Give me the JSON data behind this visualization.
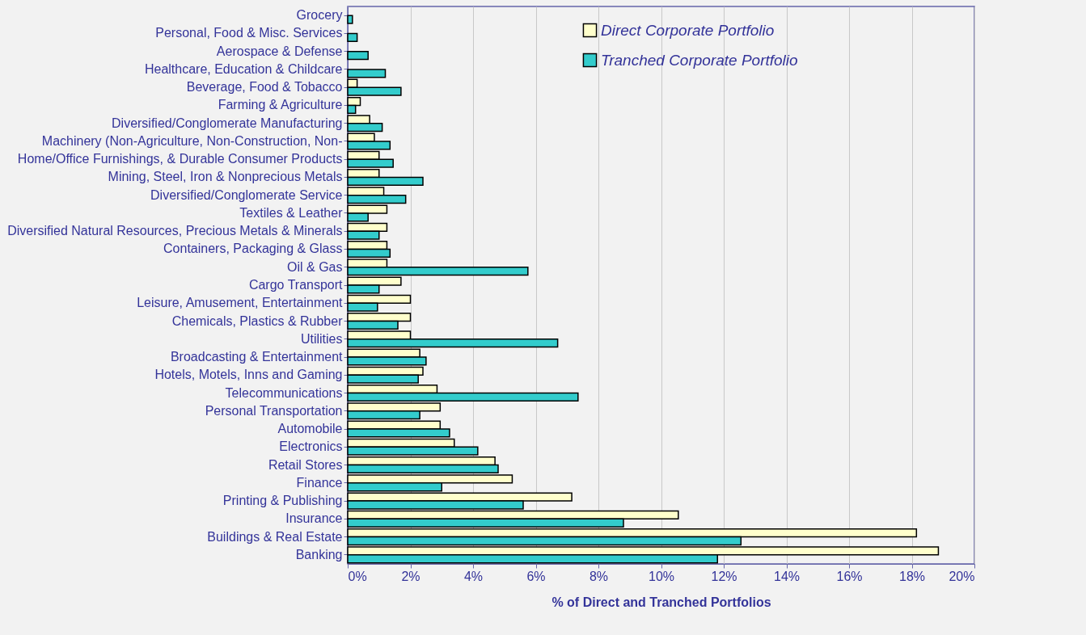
{
  "chart_data": {
    "type": "bar",
    "orientation": "horizontal",
    "xlabel": "% of Direct and Tranched Portfolios",
    "categories": [
      "Grocery",
      "Personal, Food & Misc. Services",
      "Aerospace & Defense",
      "Healthcare, Education & Childcare",
      "Beverage, Food & Tobacco",
      "Farming & Agriculture",
      "Diversified/Conglomerate Manufacturing",
      "Machinery (Non-Agriculture, Non-Construction, Non-",
      "Home/Office Furnishings, & Durable Consumer Products",
      "Mining, Steel, Iron & Nonprecious Metals",
      "Diversified/Conglomerate Service",
      "Textiles & Leather",
      "Diversified Natural Resources, Precious Metals & Minerals",
      "Containers, Packaging & Glass",
      "Oil & Gas",
      "Cargo Transport",
      "Leisure, Amusement, Entertainment",
      "Chemicals, Plastics & Rubber",
      "Utilities",
      "Broadcasting & Entertainment",
      "Hotels, Motels, Inns and Gaming",
      "Telecommunications",
      "Personal Transportation",
      "Automobile",
      "Electronics",
      "Retail Stores",
      "Finance",
      "Printing & Publishing",
      "Insurance",
      "Buildings & Real Estate",
      "Banking"
    ],
    "series": [
      {
        "name": "Direct Corporate Portfolio",
        "color": "#ffffcc",
        "values": [
          null,
          null,
          null,
          null,
          0.3,
          0.4,
          0.7,
          0.85,
          1.0,
          1.0,
          1.15,
          1.25,
          1.25,
          1.25,
          1.25,
          1.7,
          2.0,
          2.0,
          2.0,
          2.3,
          2.4,
          2.85,
          2.95,
          2.95,
          3.4,
          4.7,
          5.25,
          7.15,
          10.55,
          18.15,
          18.85
        ]
      },
      {
        "name": "Tranched Corporate Portfolio",
        "color": "#33cccc",
        "values": [
          0.15,
          0.3,
          0.65,
          1.2,
          1.7,
          0.25,
          1.1,
          1.35,
          1.45,
          2.4,
          1.85,
          0.65,
          1.0,
          1.35,
          5.75,
          1.0,
          0.95,
          1.6,
          6.7,
          2.5,
          2.25,
          7.35,
          2.3,
          3.25,
          4.15,
          4.8,
          3.0,
          5.6,
          8.8,
          12.55,
          11.8
        ]
      }
    ],
    "xlim": [
      0,
      20
    ],
    "xticks": [
      {
        "value": 0,
        "label": "0%"
      },
      {
        "value": 2,
        "label": "2%"
      },
      {
        "value": 4,
        "label": "4%"
      },
      {
        "value": 6,
        "label": "6%"
      },
      {
        "value": 8,
        "label": "8%"
      },
      {
        "value": 10,
        "label": "10%"
      },
      {
        "value": 12,
        "label": "12%"
      },
      {
        "value": 14,
        "label": "14%"
      },
      {
        "value": 16,
        "label": "16%"
      },
      {
        "value": 18,
        "label": "18%"
      },
      {
        "value": 20,
        "label": "20%"
      }
    ],
    "grid": "x",
    "legend": "top right"
  }
}
